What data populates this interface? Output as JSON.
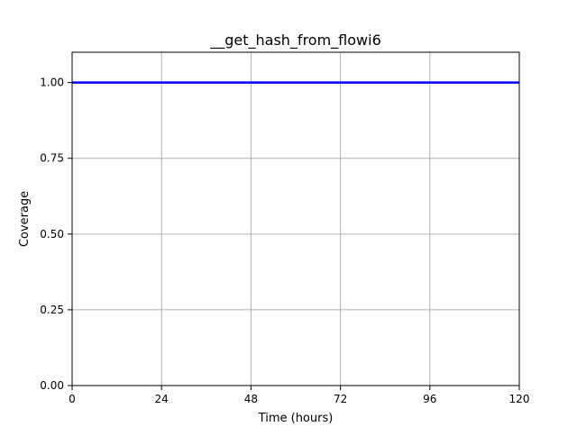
{
  "chart_data": {
    "type": "line",
    "title": "__get_hash_from_flowi6",
    "xlabel": "Time (hours)",
    "ylabel": "Coverage",
    "xlim": [
      0,
      120
    ],
    "ylim": [
      0,
      1.1
    ],
    "xticks": [
      0,
      24,
      48,
      72,
      96,
      120
    ],
    "xtick_labels": [
      "0",
      "24",
      "48",
      "72",
      "96",
      "120"
    ],
    "yticks": [
      0,
      0.25,
      0.5,
      0.75,
      1.0
    ],
    "ytick_labels": [
      "0.00",
      "0.25",
      "0.50",
      "0.75",
      "1.00"
    ],
    "grid": true,
    "series": [
      {
        "color": "#0000ff",
        "x": [
          0,
          120
        ],
        "y": [
          1.0,
          1.0
        ]
      }
    ]
  }
}
